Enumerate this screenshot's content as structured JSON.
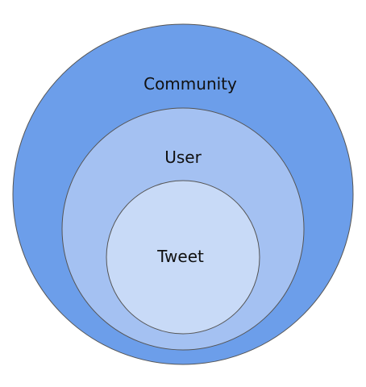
{
  "diagram": {
    "layers": [
      {
        "key": "outer",
        "label": "Community",
        "fill": "#6c9eea"
      },
      {
        "key": "middle",
        "label": "User",
        "fill": "#a4c1f2"
      },
      {
        "key": "inner",
        "label": "Tweet",
        "fill": "#c8daf7"
      }
    ],
    "stroke": "#555555"
  }
}
